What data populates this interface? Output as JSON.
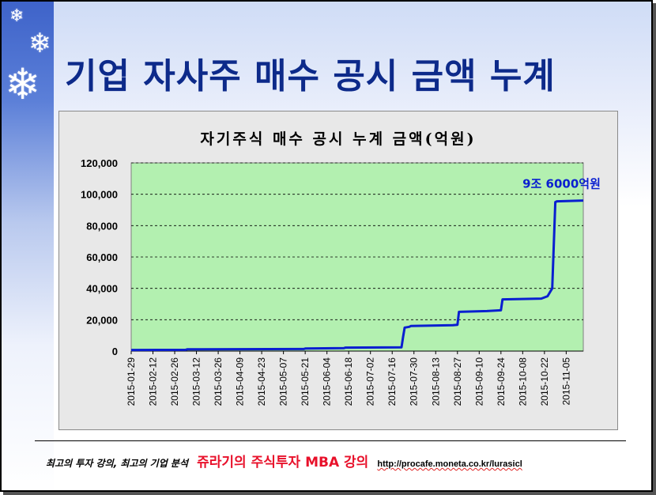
{
  "slide": {
    "title": "기업 자사주 매수 공시 금액 누계",
    "footer": {
      "tagline": "최고의 투자 강의, 최고의 기업 분석",
      "brand": "쥬라기의 주식투자 MBA 강의",
      "url": "http://procafe.moneta.co.kr/lurasicl"
    },
    "decoration_icons": [
      "snowflake-icon",
      "snowflake-icon",
      "snowflake-icon"
    ]
  },
  "colors": {
    "title": "#0d2a8a",
    "plot_bg": "#b3f0b0",
    "line": "#0a1fd0",
    "footer_brand": "#e8102a"
  },
  "chart_data": {
    "type": "line",
    "title": "자기주식 매수 공시 누계  금액(억원)",
    "xlabel": "",
    "ylabel": "",
    "ylim": [
      0,
      120000
    ],
    "yticks": [
      "0",
      "20,000",
      "40,000",
      "60,000",
      "80,000",
      "100,000",
      "120,000"
    ],
    "xlim": [
      "2015-01-29",
      "2015-11-16"
    ],
    "xticks": [
      "2015-01-29",
      "2015-02-12",
      "2015-02-26",
      "2015-03-12",
      "2015-03-26",
      "2015-04-09",
      "2015-04-23",
      "2015-05-07",
      "2015-05-21",
      "2015-06-04",
      "2015-06-18",
      "2015-07-02",
      "2015-07-16",
      "2015-07-30",
      "2015-08-13",
      "2015-08-27",
      "2015-09-10",
      "2015-09-24",
      "2015-10-08",
      "2015-10-22",
      "2015-11-05"
    ],
    "grid": true,
    "series": [
      {
        "x": [
          "2015-01-29",
          "2015-03-05",
          "2015-03-06",
          "2015-05-20",
          "2015-05-21",
          "2015-06-15",
          "2015-06-16",
          "2015-07-22",
          "2015-07-23",
          "2015-07-24",
          "2015-07-27",
          "2015-07-28",
          "2015-08-24",
          "2015-08-27",
          "2015-08-28",
          "2015-09-15",
          "2015-09-24",
          "2015-09-25",
          "2015-10-20",
          "2015-10-24",
          "2015-10-27",
          "2015-10-28",
          "2015-10-29",
          "2015-10-30",
          "2015-11-16"
        ],
        "y": [
          700,
          800,
          1100,
          1300,
          1600,
          1900,
          2200,
          2400,
          9000,
          15000,
          15500,
          16000,
          16500,
          16800,
          25000,
          25500,
          26000,
          33000,
          33500,
          35000,
          40000,
          68000,
          95000,
          95500,
          96000
        ]
      }
    ],
    "annotations": [
      {
        "text": "9조 6000억원",
        "x": "2015-11-02",
        "y": 104000
      }
    ]
  }
}
